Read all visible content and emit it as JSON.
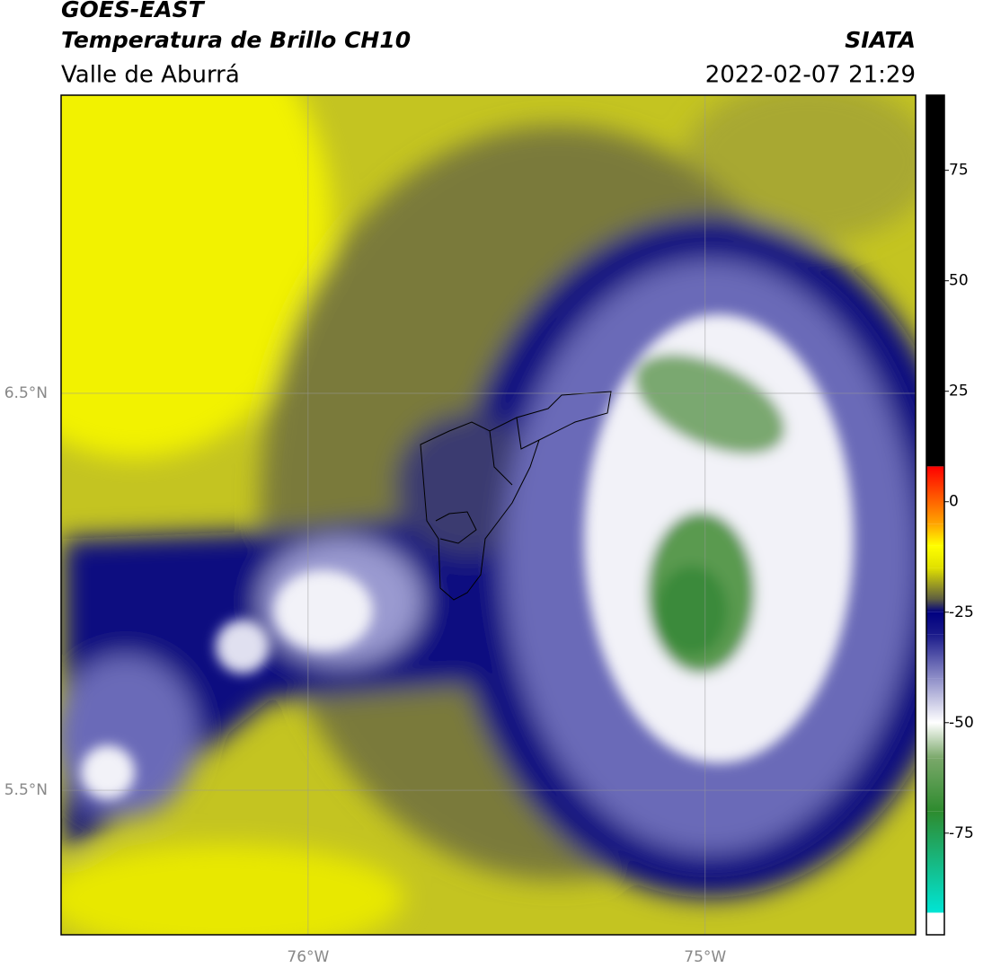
{
  "header": {
    "title": "GOES-EAST",
    "subtitle": "Temperatura de Brillo CH10",
    "source": "SIATA",
    "region": "Valle de Aburrá",
    "datetime": "2022-02-07 21:29"
  },
  "map": {
    "xlim": [
      -76.622,
      -74.47
    ],
    "ylim": [
      5.136,
      7.251
    ],
    "xticks": [
      {
        "value": -76,
        "label": "76°W"
      },
      {
        "value": -75,
        "label": "75°W"
      }
    ],
    "yticks": [
      {
        "value": 5.5,
        "label": "5.5°N"
      },
      {
        "value": 6.5,
        "label": "6.5°N"
      }
    ],
    "grid": true
  },
  "colorbar": {
    "lim": [
      -98,
      92
    ],
    "ticks": [
      -75,
      -50,
      -25,
      0,
      25,
      50,
      75
    ],
    "stops": [
      {
        "value": -98,
        "color": "#ffffff"
      },
      {
        "value": -93,
        "color": "#ffffff"
      },
      {
        "value": -93,
        "color": "#00e5d5"
      },
      {
        "value": -70,
        "color": "#2e8b2e"
      },
      {
        "value": -58,
        "color": "#7aa86a"
      },
      {
        "value": -50,
        "color": "#ffffff"
      },
      {
        "value": -40,
        "color": "#8f8fc8"
      },
      {
        "value": -30,
        "color": "#1a1a8a"
      },
      {
        "value": -25,
        "color": "#000080"
      },
      {
        "value": -22,
        "color": "#5f5f40"
      },
      {
        "value": -15,
        "color": "#e0e000"
      },
      {
        "value": -10,
        "color": "#ffff00"
      },
      {
        "value": -5,
        "color": "#ffa500"
      },
      {
        "value": 8,
        "color": "#ff0000"
      },
      {
        "value": 8,
        "color": "#000000"
      },
      {
        "value": 92,
        "color": "#000000"
      }
    ]
  }
}
